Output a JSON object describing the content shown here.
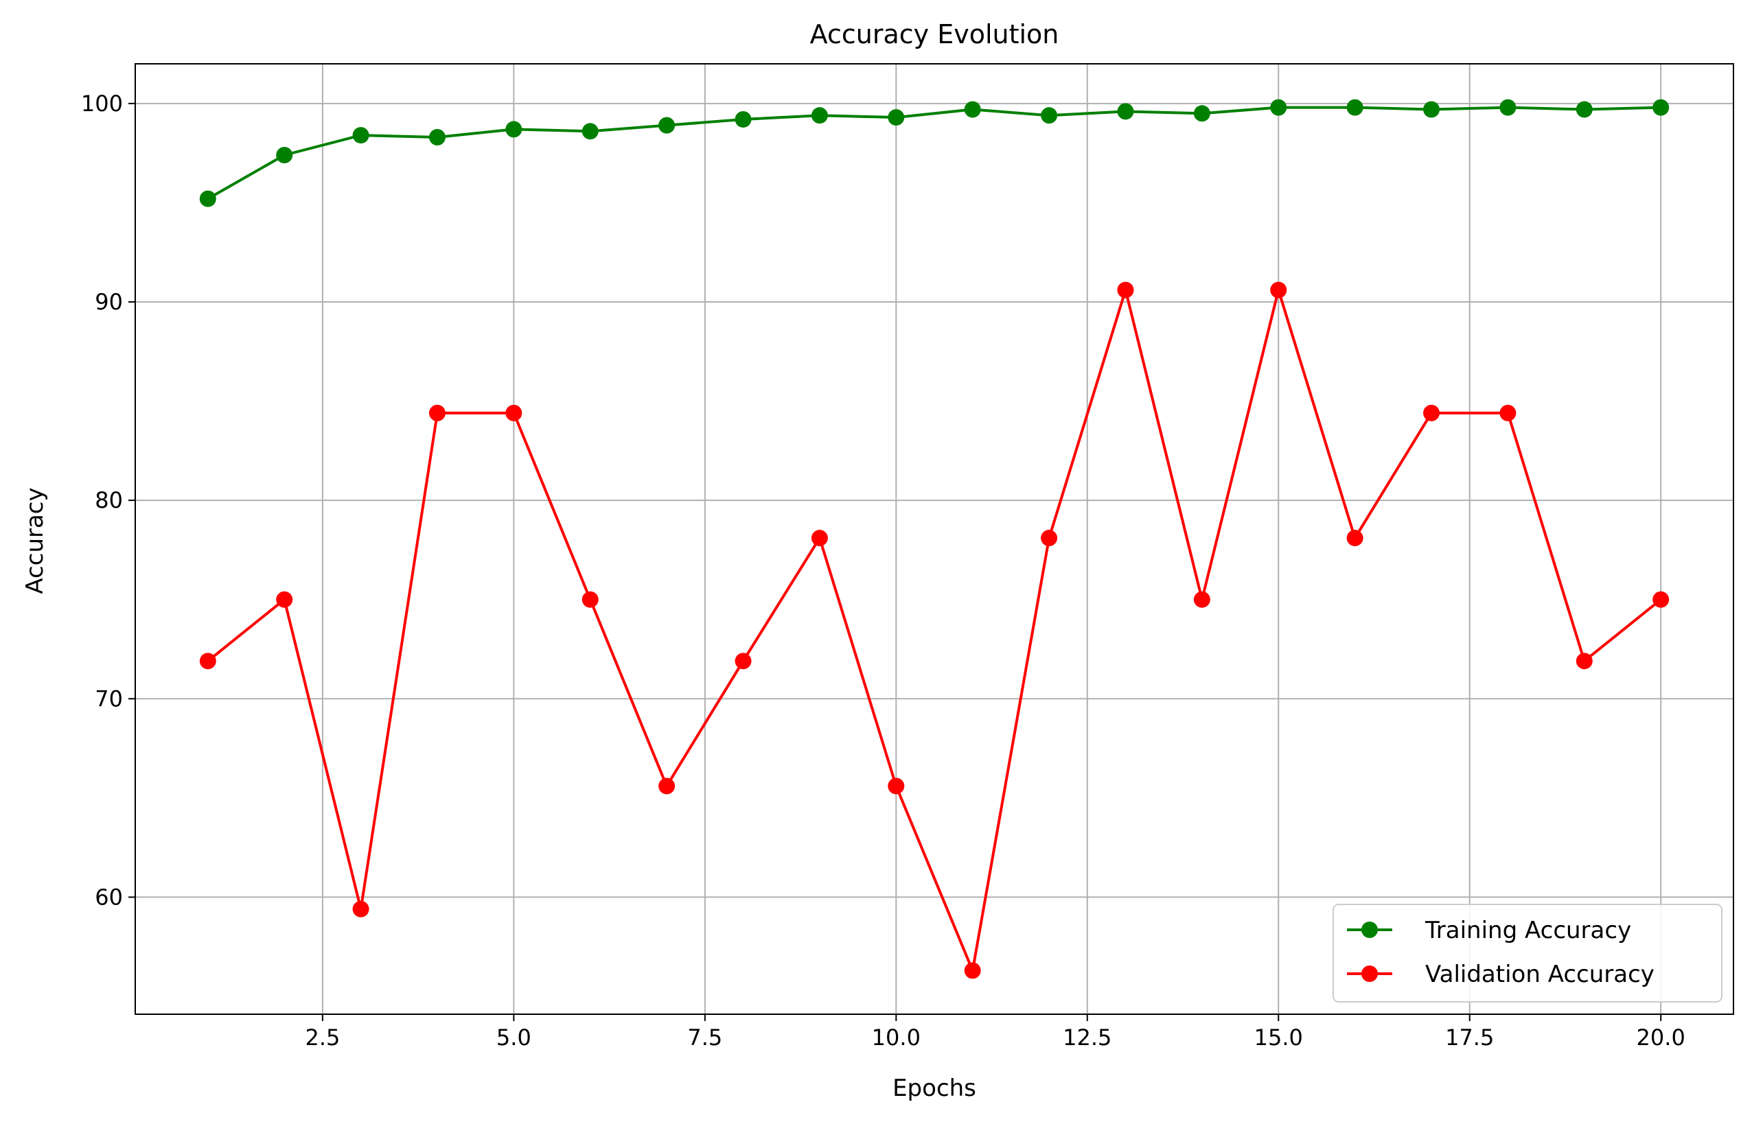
{
  "chart_data": {
    "type": "line",
    "title": "Accuracy Evolution",
    "xlabel": "Epochs",
    "ylabel": "Accuracy",
    "xlim": [
      0.05,
      20.95
    ],
    "ylim": [
      54.1,
      102.0
    ],
    "xticks": [
      2.5,
      5.0,
      7.5,
      10.0,
      12.5,
      15.0,
      17.5,
      20.0
    ],
    "xtick_labels": [
      "2.5",
      "5.0",
      "7.5",
      "10.0",
      "12.5",
      "15.0",
      "17.5",
      "20.0"
    ],
    "yticks": [
      60,
      70,
      80,
      90,
      100
    ],
    "ytick_labels": [
      "60",
      "70",
      "80",
      "90",
      "100"
    ],
    "grid": true,
    "legend_position": "bottom-right",
    "x": [
      1,
      2,
      3,
      4,
      5,
      6,
      7,
      8,
      9,
      10,
      11,
      12,
      13,
      14,
      15,
      16,
      17,
      18,
      19,
      20
    ],
    "series": [
      {
        "name": "Training Accuracy",
        "color": "#008000",
        "marker": "circle",
        "values": [
          95.2,
          97.4,
          98.4,
          98.3,
          98.7,
          98.6,
          98.9,
          99.2,
          99.4,
          99.3,
          99.7,
          99.4,
          99.6,
          99.5,
          99.8,
          99.8,
          99.7,
          99.8,
          99.7,
          99.8
        ]
      },
      {
        "name": "Validation Accuracy",
        "color": "#ff0000",
        "marker": "circle",
        "values": [
          71.9,
          75.0,
          59.4,
          84.4,
          84.4,
          75.0,
          65.6,
          71.9,
          78.1,
          65.6,
          56.3,
          78.1,
          90.6,
          75.0,
          90.6,
          78.1,
          84.4,
          84.4,
          71.9,
          75.0
        ]
      }
    ]
  }
}
